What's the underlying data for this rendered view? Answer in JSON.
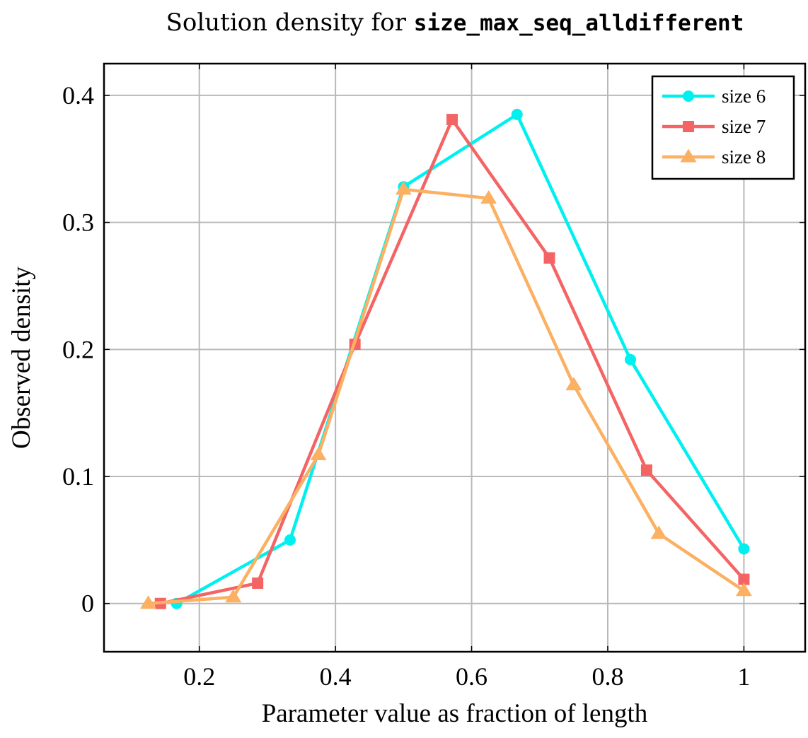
{
  "chart_data": {
    "type": "line",
    "title_prefix": "Solution density for ",
    "title_code": "size_max_seq_alldifferent",
    "xlabel": "Parameter value as fraction of length",
    "ylabel": "Observed density",
    "xlim": [
      0.06,
      1.09
    ],
    "ylim": [
      -0.038,
      0.425
    ],
    "xticks": [
      0.2,
      0.4,
      0.6,
      0.8,
      1.0
    ],
    "xtick_labels": [
      "0.2",
      "0.4",
      "0.6",
      "0.8",
      "1"
    ],
    "yticks": [
      0,
      0.1,
      0.2,
      0.3,
      0.4
    ],
    "ytick_labels": [
      "0",
      "0.1",
      "0.2",
      "0.3",
      "0.4"
    ],
    "grid": true,
    "legend_position": "top-right",
    "series": [
      {
        "name": "size 6",
        "color": "#00f0f0",
        "marker": "circle",
        "x": [
          0.1667,
          0.3333,
          0.5,
          0.6667,
          0.8333,
          1.0
        ],
        "y": [
          0.0,
          0.05,
          0.328,
          0.385,
          0.192,
          0.043
        ]
      },
      {
        "name": "size 7",
        "color": "#f46464",
        "marker": "square",
        "x": [
          0.1429,
          0.2857,
          0.4286,
          0.5714,
          0.7143,
          0.8571,
          1.0
        ],
        "y": [
          0.0,
          0.016,
          0.204,
          0.381,
          0.272,
          0.105,
          0.019
        ]
      },
      {
        "name": "size 8",
        "color": "#fbb062",
        "marker": "triangle",
        "x": [
          0.125,
          0.25,
          0.375,
          0.5,
          0.625,
          0.75,
          0.875,
          1.0
        ],
        "y": [
          0.0,
          0.005,
          0.117,
          0.326,
          0.319,
          0.172,
          0.055,
          0.01
        ]
      }
    ]
  }
}
